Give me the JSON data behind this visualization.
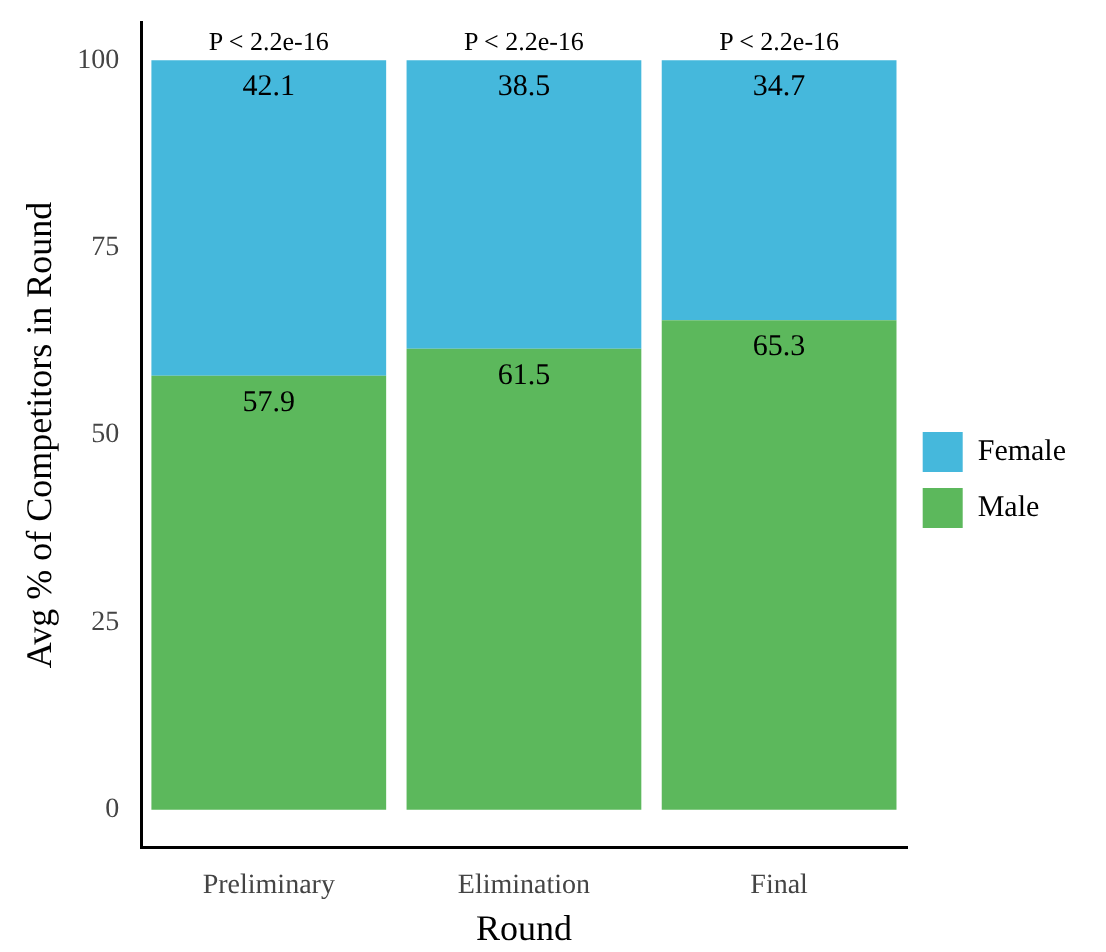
{
  "chart_data": {
    "type": "bar",
    "stacked": true,
    "xlabel": "Round",
    "ylabel": "Avg % of Competitors in Round",
    "categories": [
      "Preliminary",
      "Elimination",
      "Final"
    ],
    "series": [
      {
        "name": "Male",
        "color": "#5cb85c",
        "values": [
          57.9,
          61.5,
          65.3
        ]
      },
      {
        "name": "Female",
        "color": "#45b8dc",
        "values": [
          42.1,
          38.5,
          34.7
        ]
      }
    ],
    "ylim": [
      -5,
      105
    ],
    "yticks": [
      0,
      25,
      50,
      75,
      100
    ],
    "grid": false,
    "legend": "right",
    "data_labels": true,
    "annotations": [
      {
        "text": "P < 2.2e-16",
        "x": "Preliminary",
        "y": 100
      },
      {
        "text": "P < 2.2e-16",
        "x": "Elimination",
        "y": 100
      },
      {
        "text": "P < 2.2e-16",
        "x": "Final",
        "y": 100
      }
    ]
  }
}
